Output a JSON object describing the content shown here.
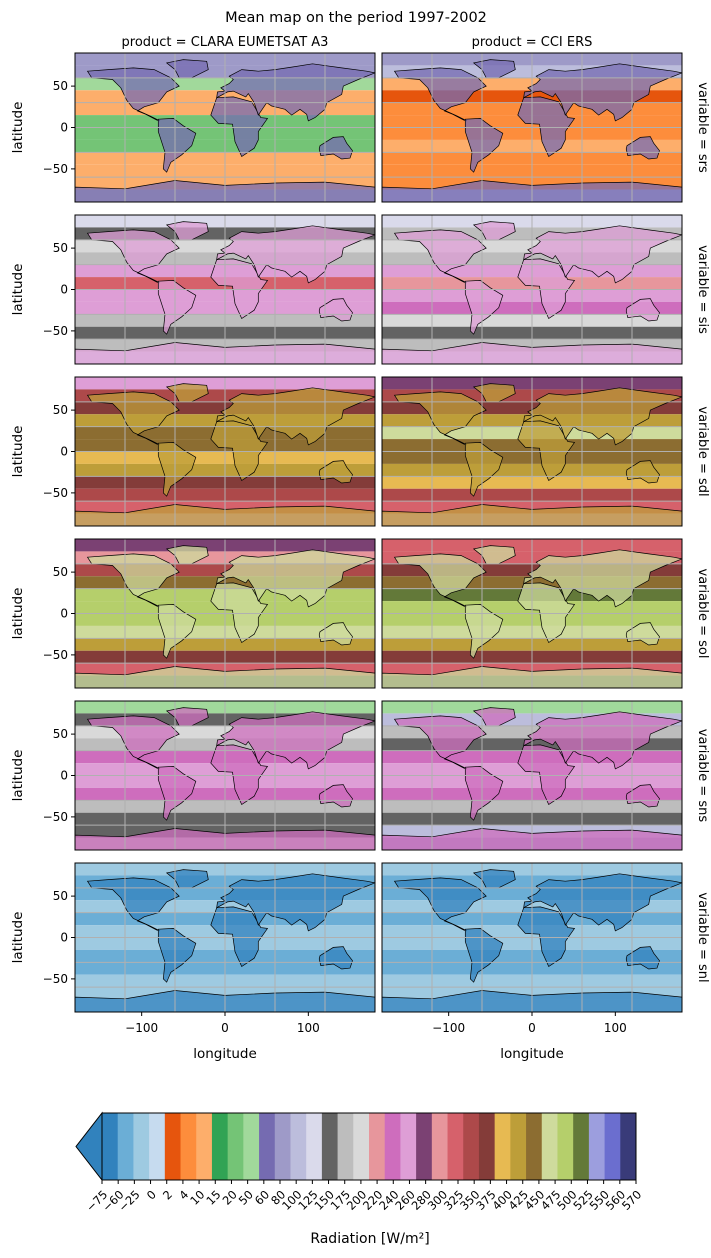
{
  "figure": {
    "title": "Mean map on the period 1997-2002",
    "column_titles": [
      "product = CLARA EUMETSAT A3",
      "product = CCI ERS"
    ],
    "row_titles": [
      "variable = srs",
      "variable = sis",
      "variable = sdl",
      "variable = sol",
      "variable = sns",
      "variable = snl"
    ],
    "ylabel": "latitude",
    "xlabel": "longitude",
    "x_ticks": [
      -100,
      0,
      100
    ],
    "y_ticks": [
      50,
      0,
      -50
    ],
    "colorbar": {
      "label": "Radiation [W/m²]",
      "extend": "min",
      "tick_labels": [
        "−75",
        "−60",
        "−25",
        "0",
        "2",
        "4",
        "10",
        "15",
        "20",
        "50",
        "60",
        "80",
        "100",
        "125",
        "150",
        "175",
        "200",
        "220",
        "240",
        "260",
        "280",
        "300",
        "325",
        "350",
        "375",
        "400",
        "425",
        "450",
        "475",
        "500",
        "525",
        "550",
        "560",
        "570"
      ],
      "colors": [
        "#3182bd",
        "#6baed6",
        "#9ecae1",
        "#c6dbef",
        "#e6550d",
        "#fd8d3c",
        "#fdae6b",
        "#31a354",
        "#74c476",
        "#a1d99b",
        "#756bb1",
        "#9e9ac8",
        "#bcbddc",
        "#dadaeb",
        "#636363",
        "#bdbdbd",
        "#d9d9d9",
        "#e7969c",
        "#ce6dbd",
        "#de9ed6",
        "#7b4173",
        "#e7969c",
        "#d6616b",
        "#ad494a",
        "#843c39",
        "#e7ba52",
        "#bd9e39",
        "#8c6d31",
        "#cedb9c",
        "#b5cf6b",
        "#637939",
        "#9c9ede",
        "#6b6ecf",
        "#393b79"
      ]
    }
  },
  "chart_data": {
    "type": "heatmap",
    "title": "Mean map on the period 1997-2002",
    "facets": {
      "columns": [
        "CLARA EUMETSAT A3",
        "CCI ERS"
      ],
      "rows": [
        "srs",
        "sis",
        "sdl",
        "sol",
        "sns",
        "snl"
      ]
    },
    "xlabel": "longitude",
    "ylabel": "latitude",
    "xlim": [
      -180,
      180
    ],
    "ylim": [
      -90,
      90
    ],
    "grid": true,
    "levels": [
      -75,
      -60,
      -25,
      0,
      2,
      4,
      10,
      15,
      20,
      50,
      60,
      80,
      100,
      125,
      150,
      175,
      200,
      220,
      240,
      260,
      280,
      300,
      325,
      350,
      375,
      400,
      425,
      450,
      475,
      500,
      525,
      550,
      560,
      570
    ],
    "colorbar_label": "Radiation [W/m²]",
    "zonal_band_edges_lat": [
      90,
      75,
      60,
      45,
      30,
      15,
      0,
      -15,
      -30,
      -45,
      -60,
      -75,
      -90
    ],
    "zonal_level_index": {
      "srs": {
        "CLARA EUMETSAT A3": [
          11,
          11,
          9,
          6,
          6,
          8,
          8,
          8,
          6,
          6,
          6,
          15,
          14
        ],
        "CCI ERS": [
          11,
          12,
          6,
          4,
          5,
          5,
          5,
          6,
          5,
          5,
          5,
          12,
          14
        ]
      },
      "sis": {
        "CLARA EUMETSAT A3": [
          13,
          14,
          16,
          15,
          19,
          22,
          19,
          19,
          15,
          14,
          15,
          13,
          12
        ],
        "CCI ERS": [
          13,
          15,
          16,
          15,
          19,
          21,
          19,
          18,
          16,
          14,
          15,
          13,
          12
        ]
      },
      "sdl": {
        "CLARA EUMETSAT A3": [
          19,
          23,
          24,
          26,
          27,
          27,
          25,
          26,
          24,
          23,
          22,
          19,
          20
        ],
        "CCI ERS": [
          20,
          23,
          24,
          26,
          28,
          27,
          27,
          26,
          25,
          23,
          22,
          19,
          20
        ]
      },
      "sol": {
        "CLARA EUMETSAT A3": [
          20,
          21,
          23,
          27,
          29,
          29,
          29,
          28,
          26,
          24,
          22,
          14,
          14
        ],
        "CCI ERS": [
          22,
          22,
          24,
          27,
          30,
          29,
          29,
          28,
          26,
          24,
          22,
          14,
          14
        ]
      },
      "sns": {
        "CLARA EUMETSAT A3": [
          9,
          14,
          16,
          15,
          18,
          19,
          19,
          18,
          15,
          14,
          14,
          15,
          9
        ],
        "CCI ERS": [
          9,
          12,
          15,
          14,
          18,
          19,
          19,
          18,
          15,
          14,
          12,
          11,
          9
        ]
      },
      "snl": {
        "CLARA EUMETSAT A3": [
          2,
          1,
          1,
          2,
          1,
          2,
          2,
          1,
          1,
          2,
          2,
          2,
          2
        ],
        "CCI ERS": [
          2,
          1,
          1,
          2,
          1,
          2,
          2,
          1,
          1,
          2,
          2,
          2,
          2
        ]
      }
    },
    "continent_level_index": {
      "srs": 10,
      "sis": 19,
      "sdl": 26,
      "sol": 28,
      "sns": 18,
      "snl": 0
    }
  }
}
